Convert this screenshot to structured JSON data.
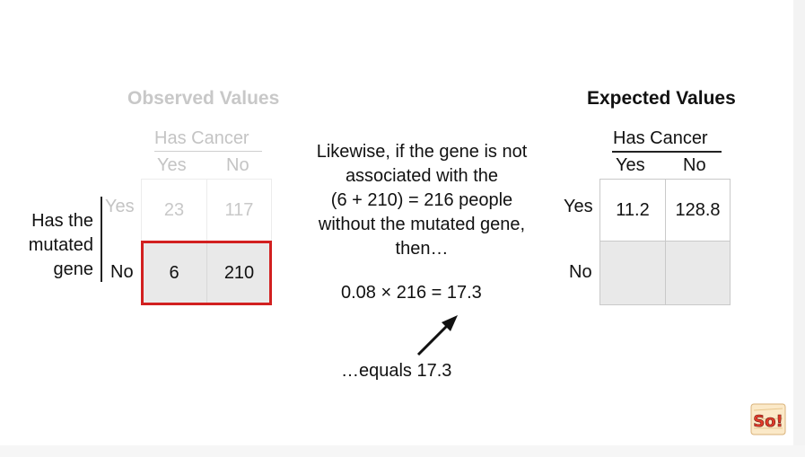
{
  "observed": {
    "title": "Observed Values",
    "col_header": "Has Cancer",
    "col_yes": "Yes",
    "col_no": "No",
    "row_header_lines": [
      "Has the",
      "mutated",
      "gene"
    ],
    "row_yes": "Yes",
    "row_no": "No",
    "cells": [
      [
        "23",
        "117"
      ],
      [
        "6",
        "210"
      ]
    ]
  },
  "middle": {
    "lines": [
      "Likewise, if the gene is not",
      "associated with the",
      "(6 + 210) = 216 people",
      "without the mutated gene,",
      "then…"
    ],
    "calc": "0.08 × 216 = 17.3",
    "note": "…equals 17.3"
  },
  "expected": {
    "title": "Expected Values",
    "col_header": "Has Cancer",
    "col_yes": "Yes",
    "col_no": "No",
    "row_yes": "Yes",
    "row_no": "No",
    "cells": [
      [
        "11.2",
        "128.8"
      ],
      [
        "",
        ""
      ]
    ]
  },
  "logo": {
    "text": "So!",
    "icon": "statquest-logo",
    "color": "#e23b2b"
  },
  "colors": {
    "highlight_border": "#d22020",
    "faded_text": "#c4c4c4",
    "cell_fill": "#e9e9e9"
  }
}
